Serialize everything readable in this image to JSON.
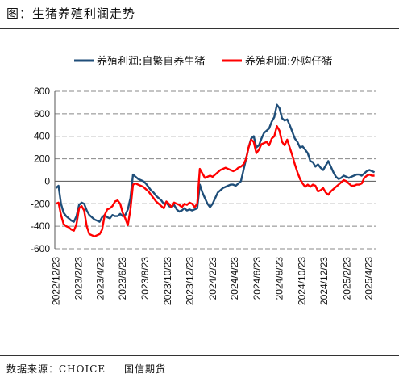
{
  "header": {
    "title": "图：生猪养殖利润走势"
  },
  "footer": {
    "source_label": "数据来源：CHOICE",
    "institution": "国信期货"
  },
  "colors": {
    "series1": "#1f4e79",
    "series2": "#ff0000",
    "grid": "#888888"
  },
  "chart_data": {
    "type": "line",
    "title": "",
    "xlabel": "",
    "ylabel": "",
    "ylim": [
      -600,
      800
    ],
    "yticks": [
      -600,
      -400,
      -200,
      0,
      200,
      400,
      600,
      800
    ],
    "x_tick_labels": [
      "2022/12/23",
      "2023/2/23",
      "2023/4/23",
      "2023/6/23",
      "2023/8/23",
      "2023/10/23",
      "2023/12/23",
      "2024/2/23",
      "2024/4/23",
      "2024/6/23",
      "2024/8/23",
      "2024/10/23",
      "2024/12/23",
      "2025/2/23",
      "2025/4/23"
    ],
    "legend_position": "top",
    "series": [
      {
        "name": "养殖利润:自繁自养生猪",
        "points": [
          [
            "2022/12/23",
            -60
          ],
          [
            "2022/12/30",
            -40
          ],
          [
            "2023/1/6",
            -200
          ],
          [
            "2023/1/13",
            -280
          ],
          [
            "2023/1/20",
            -310
          ],
          [
            "2023/1/27",
            -330
          ],
          [
            "2023/2/3",
            -350
          ],
          [
            "2023/2/10",
            -360
          ],
          [
            "2023/2/17",
            -310
          ],
          [
            "2023/2/24",
            -210
          ],
          [
            "2023/3/3",
            -190
          ],
          [
            "2023/3/10",
            -200
          ],
          [
            "2023/3/17",
            -260
          ],
          [
            "2023/3/24",
            -300
          ],
          [
            "2023/3/31",
            -320
          ],
          [
            "2023/4/7",
            -340
          ],
          [
            "2023/4/14",
            -350
          ],
          [
            "2023/4/21",
            -360
          ],
          [
            "2023/4/28",
            -320
          ],
          [
            "2023/5/5",
            -300
          ],
          [
            "2023/5/12",
            -320
          ],
          [
            "2023/5/19",
            -330
          ],
          [
            "2023/5/26",
            -300
          ],
          [
            "2023/6/2",
            -310
          ],
          [
            "2023/6/9",
            -310
          ],
          [
            "2023/6/16",
            -290
          ],
          [
            "2023/6/23",
            -310
          ],
          [
            "2023/6/30",
            -300
          ],
          [
            "2023/7/7",
            -250
          ],
          [
            "2023/7/14",
            -150
          ],
          [
            "2023/7/21",
            60
          ],
          [
            "2023/7/28",
            40
          ],
          [
            "2023/8/4",
            20
          ],
          [
            "2023/8/11",
            10
          ],
          [
            "2023/8/18",
            0
          ],
          [
            "2023/8/25",
            -20
          ],
          [
            "2023/9/1",
            -50
          ],
          [
            "2023/9/8",
            -80
          ],
          [
            "2023/9/15",
            -100
          ],
          [
            "2023/9/22",
            -130
          ],
          [
            "2023/9/29",
            -150
          ],
          [
            "2023/10/6",
            -170
          ],
          [
            "2023/10/13",
            -200
          ],
          [
            "2023/10/20",
            -190
          ],
          [
            "2023/10/27",
            -220
          ],
          [
            "2023/11/3",
            -230
          ],
          [
            "2023/11/10",
            -210
          ],
          [
            "2023/11/17",
            -250
          ],
          [
            "2023/11/24",
            -270
          ],
          [
            "2023/12/1",
            -260
          ],
          [
            "2023/12/8",
            -240
          ],
          [
            "2023/12/15",
            -260
          ],
          [
            "2023/12/22",
            -250
          ],
          [
            "2023/12/29",
            -260
          ],
          [
            "2024/1/5",
            -250
          ],
          [
            "2024/1/12",
            -240
          ],
          [
            "2024/1/19",
            -30
          ],
          [
            "2024/1/26",
            -100
          ],
          [
            "2024/2/2",
            -150
          ],
          [
            "2024/2/9",
            -200
          ],
          [
            "2024/2/16",
            -230
          ],
          [
            "2024/2/23",
            -200
          ],
          [
            "2024/3/1",
            -150
          ],
          [
            "2024/3/8",
            -100
          ],
          [
            "2024/3/15",
            -80
          ],
          [
            "2024/3/22",
            -60
          ],
          [
            "2024/3/29",
            -50
          ],
          [
            "2024/4/5",
            -40
          ],
          [
            "2024/4/12",
            -30
          ],
          [
            "2024/4/19",
            -30
          ],
          [
            "2024/4/26",
            -40
          ],
          [
            "2024/5/3",
            -20
          ],
          [
            "2024/5/10",
            0
          ],
          [
            "2024/5/17",
            100
          ],
          [
            "2024/5/24",
            200
          ],
          [
            "2024/5/31",
            300
          ],
          [
            "2024/6/7",
            380
          ],
          [
            "2024/6/14",
            400
          ],
          [
            "2024/6/21",
            300
          ],
          [
            "2024/6/28",
            320
          ],
          [
            "2024/7/5",
            380
          ],
          [
            "2024/7/12",
            430
          ],
          [
            "2024/7/19",
            450
          ],
          [
            "2024/7/26",
            470
          ],
          [
            "2024/8/2",
            530
          ],
          [
            "2024/8/9",
            570
          ],
          [
            "2024/8/16",
            680
          ],
          [
            "2024/8/23",
            650
          ],
          [
            "2024/8/30",
            560
          ],
          [
            "2024/9/6",
            540
          ],
          [
            "2024/9/13",
            550
          ],
          [
            "2024/9/20",
            500
          ],
          [
            "2024/9/27",
            440
          ],
          [
            "2024/10/4",
            380
          ],
          [
            "2024/10/11",
            350
          ],
          [
            "2024/10/18",
            300
          ],
          [
            "2024/10/25",
            310
          ],
          [
            "2024/11/1",
            280
          ],
          [
            "2024/11/8",
            250
          ],
          [
            "2024/11/15",
            180
          ],
          [
            "2024/11/22",
            170
          ],
          [
            "2024/11/29",
            130
          ],
          [
            "2024/12/6",
            150
          ],
          [
            "2024/12/13",
            120
          ],
          [
            "2024/12/20",
            100
          ],
          [
            "2024/12/27",
            140
          ],
          [
            "2025/1/3",
            180
          ],
          [
            "2025/1/10",
            130
          ],
          [
            "2025/1/17",
            80
          ],
          [
            "2025/1/24",
            40
          ],
          [
            "2025/1/31",
            20
          ],
          [
            "2025/2/7",
            30
          ],
          [
            "2025/2/14",
            50
          ],
          [
            "2025/2/21",
            40
          ],
          [
            "2025/2/28",
            30
          ],
          [
            "2025/3/7",
            40
          ],
          [
            "2025/3/14",
            50
          ],
          [
            "2025/3/21",
            60
          ],
          [
            "2025/3/28",
            60
          ],
          [
            "2025/4/4",
            50
          ],
          [
            "2025/4/11",
            70
          ],
          [
            "2025/4/18",
            90
          ],
          [
            "2025/4/25",
            100
          ],
          [
            "2025/5/2",
            90
          ],
          [
            "2025/5/9",
            80
          ]
        ]
      },
      {
        "name": "养殖利润:外购仔猪",
        "points": [
          [
            "2022/12/23",
            -200
          ],
          [
            "2022/12/30",
            -190
          ],
          [
            "2023/1/6",
            -300
          ],
          [
            "2023/1/13",
            -380
          ],
          [
            "2023/1/20",
            -400
          ],
          [
            "2023/1/27",
            -410
          ],
          [
            "2023/2/3",
            -430
          ],
          [
            "2023/2/10",
            -440
          ],
          [
            "2023/2/17",
            -380
          ],
          [
            "2023/2/24",
            -240
          ],
          [
            "2023/3/3",
            -220
          ],
          [
            "2023/3/10",
            -260
          ],
          [
            "2023/3/17",
            -400
          ],
          [
            "2023/3/24",
            -470
          ],
          [
            "2023/3/31",
            -480
          ],
          [
            "2023/4/7",
            -490
          ],
          [
            "2023/4/14",
            -480
          ],
          [
            "2023/4/21",
            -470
          ],
          [
            "2023/4/28",
            -430
          ],
          [
            "2023/5/5",
            -300
          ],
          [
            "2023/5/12",
            -250
          ],
          [
            "2023/5/19",
            -240
          ],
          [
            "2023/5/26",
            -220
          ],
          [
            "2023/6/2",
            -180
          ],
          [
            "2023/6/9",
            -170
          ],
          [
            "2023/6/16",
            -200
          ],
          [
            "2023/6/23",
            -280
          ],
          [
            "2023/6/30",
            -330
          ],
          [
            "2023/7/7",
            -390
          ],
          [
            "2023/7/14",
            -250
          ],
          [
            "2023/7/21",
            -30
          ],
          [
            "2023/7/28",
            -20
          ],
          [
            "2023/8/4",
            -30
          ],
          [
            "2023/8/11",
            -40
          ],
          [
            "2023/8/18",
            -50
          ],
          [
            "2023/8/25",
            -70
          ],
          [
            "2023/9/1",
            -90
          ],
          [
            "2023/9/8",
            -120
          ],
          [
            "2023/9/15",
            -150
          ],
          [
            "2023/9/22",
            -180
          ],
          [
            "2023/9/29",
            -200
          ],
          [
            "2023/10/6",
            -220
          ],
          [
            "2023/10/13",
            -240
          ],
          [
            "2023/10/20",
            -180
          ],
          [
            "2023/10/27",
            -200
          ],
          [
            "2023/11/3",
            -230
          ],
          [
            "2023/11/10",
            -190
          ],
          [
            "2023/11/17",
            -200
          ],
          [
            "2023/11/24",
            -210
          ],
          [
            "2023/12/1",
            -230
          ],
          [
            "2023/12/8",
            -200
          ],
          [
            "2023/12/15",
            -210
          ],
          [
            "2023/12/22",
            -190
          ],
          [
            "2023/12/29",
            -200
          ],
          [
            "2024/1/5",
            -230
          ],
          [
            "2024/1/12",
            -200
          ],
          [
            "2024/1/19",
            110
          ],
          [
            "2024/1/26",
            70
          ],
          [
            "2024/2/2",
            30
          ],
          [
            "2024/2/9",
            40
          ],
          [
            "2024/2/16",
            50
          ],
          [
            "2024/2/23",
            40
          ],
          [
            "2024/3/1",
            60
          ],
          [
            "2024/3/8",
            80
          ],
          [
            "2024/3/15",
            100
          ],
          [
            "2024/3/22",
            110
          ],
          [
            "2024/3/29",
            120
          ],
          [
            "2024/4/5",
            110
          ],
          [
            "2024/4/12",
            100
          ],
          [
            "2024/4/19",
            90
          ],
          [
            "2024/4/26",
            100
          ],
          [
            "2024/5/3",
            120
          ],
          [
            "2024/5/10",
            130
          ],
          [
            "2024/5/17",
            150
          ],
          [
            "2024/5/24",
            200
          ],
          [
            "2024/5/31",
            300
          ],
          [
            "2024/6/7",
            370
          ],
          [
            "2024/6/14",
            350
          ],
          [
            "2024/6/21",
            250
          ],
          [
            "2024/6/28",
            280
          ],
          [
            "2024/7/5",
            330
          ],
          [
            "2024/7/12",
            340
          ],
          [
            "2024/7/19",
            350
          ],
          [
            "2024/7/26",
            320
          ],
          [
            "2024/8/2",
            380
          ],
          [
            "2024/8/9",
            400
          ],
          [
            "2024/8/16",
            490
          ],
          [
            "2024/8/23",
            450
          ],
          [
            "2024/8/30",
            350
          ],
          [
            "2024/9/6",
            320
          ],
          [
            "2024/9/13",
            370
          ],
          [
            "2024/9/20",
            300
          ],
          [
            "2024/9/27",
            230
          ],
          [
            "2024/10/4",
            150
          ],
          [
            "2024/10/11",
            80
          ],
          [
            "2024/10/18",
            20
          ],
          [
            "2024/10/25",
            -20
          ],
          [
            "2024/11/1",
            -50
          ],
          [
            "2024/11/8",
            -30
          ],
          [
            "2024/11/15",
            -50
          ],
          [
            "2024/11/22",
            -30
          ],
          [
            "2024/11/29",
            -40
          ],
          [
            "2024/12/6",
            -90
          ],
          [
            "2024/12/13",
            -80
          ],
          [
            "2024/12/20",
            -60
          ],
          [
            "2024/12/27",
            -100
          ],
          [
            "2025/1/3",
            -120
          ],
          [
            "2025/1/10",
            -90
          ],
          [
            "2025/1/17",
            -70
          ],
          [
            "2025/1/24",
            -50
          ],
          [
            "2025/1/31",
            -30
          ],
          [
            "2025/2/7",
            -10
          ],
          [
            "2025/2/14",
            10
          ],
          [
            "2025/2/21",
            0
          ],
          [
            "2025/2/28",
            -20
          ],
          [
            "2025/3/7",
            -40
          ],
          [
            "2025/3/14",
            -40
          ],
          [
            "2025/3/21",
            -30
          ],
          [
            "2025/3/28",
            -30
          ],
          [
            "2025/4/4",
            -20
          ],
          [
            "2025/4/11",
            30
          ],
          [
            "2025/4/18",
            50
          ],
          [
            "2025/4/25",
            60
          ],
          [
            "2025/5/2",
            50
          ],
          [
            "2025/5/9",
            50
          ]
        ]
      }
    ]
  }
}
